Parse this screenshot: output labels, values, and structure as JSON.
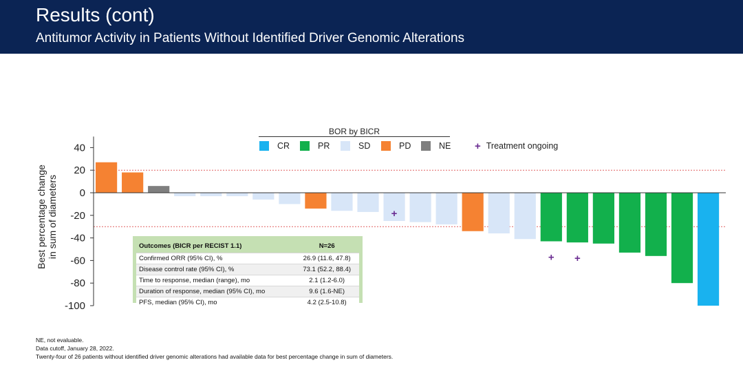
{
  "header": {
    "title": "Results (cont)",
    "subtitle": "Antitumor Activity in Patients Without Identified Driver Genomic Alterations"
  },
  "legend": {
    "title": "BOR by BICR",
    "items": [
      {
        "label": "CR",
        "color": "#19b2ef"
      },
      {
        "label": "PR",
        "color": "#12b04c"
      },
      {
        "label": "SD",
        "color": "#d8e6f8"
      },
      {
        "label": "PD",
        "color": "#f58232"
      },
      {
        "label": "NE",
        "color": "#7f7f7f"
      }
    ],
    "ongoing_label": "Treatment ongoing",
    "ongoing_icon": "plus-icon"
  },
  "chart_data": {
    "type": "bar",
    "title": "",
    "ylabel": "Best percentage change in sum of diameters",
    "xlabel": "",
    "ylim": [
      -100,
      40
    ],
    "yticks": [
      40,
      20,
      0,
      -20,
      -40,
      -60,
      -80,
      -100
    ],
    "reference_lines": [
      20,
      -30
    ],
    "bars": [
      {
        "value": 27,
        "response": "PD",
        "ongoing": false
      },
      {
        "value": 18,
        "response": "PD",
        "ongoing": false
      },
      {
        "value": 6,
        "response": "NE",
        "ongoing": false
      },
      {
        "value": -3,
        "response": "SD",
        "ongoing": false
      },
      {
        "value": -3,
        "response": "SD",
        "ongoing": false
      },
      {
        "value": -3,
        "response": "SD",
        "ongoing": false
      },
      {
        "value": -6,
        "response": "SD",
        "ongoing": false
      },
      {
        "value": -10,
        "response": "SD",
        "ongoing": false
      },
      {
        "value": -14,
        "response": "PD",
        "ongoing": false
      },
      {
        "value": -16,
        "response": "SD",
        "ongoing": false
      },
      {
        "value": -17,
        "response": "SD",
        "ongoing": false
      },
      {
        "value": -25,
        "response": "SD",
        "ongoing": true
      },
      {
        "value": -26,
        "response": "SD",
        "ongoing": false
      },
      {
        "value": -28,
        "response": "SD",
        "ongoing": false
      },
      {
        "value": -34,
        "response": "PD",
        "ongoing": false
      },
      {
        "value": -36,
        "response": "SD",
        "ongoing": false
      },
      {
        "value": -41,
        "response": "SD",
        "ongoing": false
      },
      {
        "value": -43,
        "response": "PR",
        "ongoing": true
      },
      {
        "value": -44,
        "response": "PR",
        "ongoing": true
      },
      {
        "value": -45,
        "response": "PR",
        "ongoing": false
      },
      {
        "value": -53,
        "response": "PR",
        "ongoing": false
      },
      {
        "value": -56,
        "response": "PR",
        "ongoing": false
      },
      {
        "value": -80,
        "response": "PR",
        "ongoing": false
      },
      {
        "value": -100,
        "response": "CR",
        "ongoing": false
      }
    ]
  },
  "outcomes": {
    "header_label": "Outcomes (BICR per RECIST 1.1)",
    "header_value": "N=26",
    "rows": [
      {
        "label": "Confirmed ORR (95% CI), %",
        "value": "26.9 (11.6, 47.8)"
      },
      {
        "label": "Disease control rate (95% CI), %",
        "value": "73.1 (52.2, 88.4)"
      },
      {
        "label": "Time to response, median (range), mo",
        "value": "2.1 (1.2-6.0)"
      },
      {
        "label": "Duration of response, median (95% CI), mo",
        "value": "9.6 (1.6-NE)"
      },
      {
        "label": "PFS, median (95% CI), mo",
        "value": "4.2 (2.5-10.8)"
      }
    ]
  },
  "footnotes": [
    "NE, not evaluable.",
    "Data cutoff, January 28, 2022.",
    "Twenty-four of 26 patients without identified driver genomic alterations had available data for best percentage change in sum of diameters."
  ]
}
